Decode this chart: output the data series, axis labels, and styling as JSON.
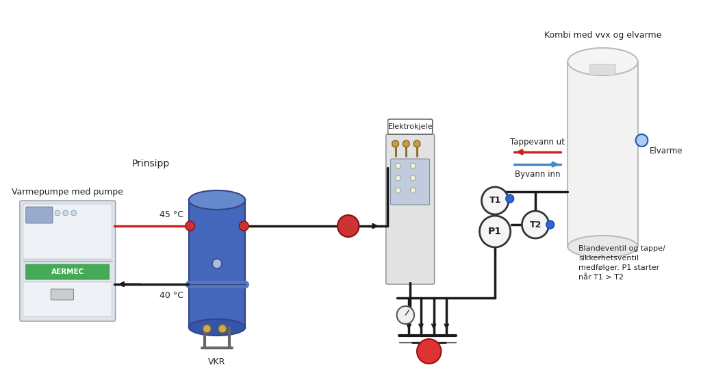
{
  "background_color": "#ffffff",
  "labels": {
    "top_right": "Kombi med vvx og elvarme",
    "prinsipp": "Prinsipp",
    "varmepumpe": "Varmepumpe med pumpe",
    "temp_45": "45 °C",
    "temp_40": "40 °C",
    "vkr": "VKR",
    "elektrokjele": "Elektrokjele",
    "tappevann_ut": "Tappevann ut",
    "byvann_inn": "Byvann inn",
    "elvarme": "Elvarme",
    "blandeventil": "Blandeventil og tappe/\nsikkerhetsventil\nmedfølger. P1 starter\nnår T1 > T2",
    "T1": "T1",
    "T2": "T2",
    "P1": "P1"
  },
  "colors": {
    "pipe_dark": "#1a1a1a",
    "pipe_red": "#cc2222",
    "pipe_blue": "#4488cc",
    "tank_blue": "#3366aa",
    "tank_gray": "#d0d0d0",
    "tank_light": "#e8e8e8",
    "text_dark": "#222222",
    "circle_fill": "#f5f5f5",
    "circle_stroke": "#333333",
    "background_color": "#ffffff"
  }
}
